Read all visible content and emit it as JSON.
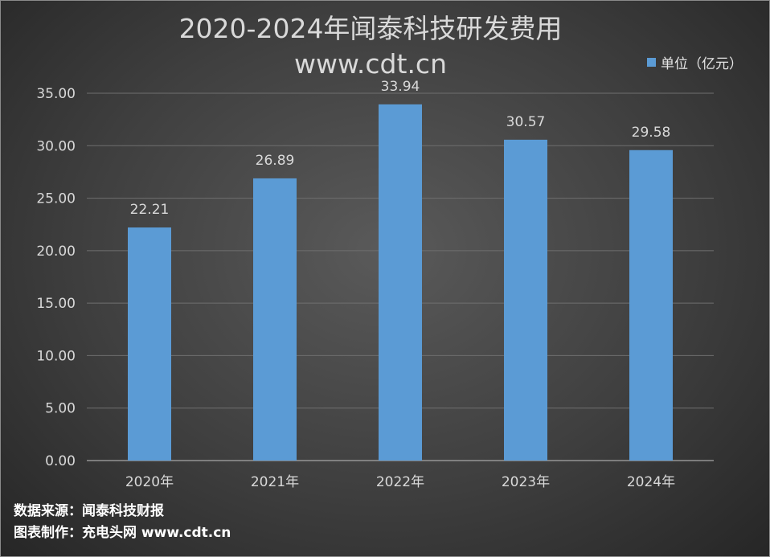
{
  "chart_data": {
    "type": "bar",
    "title": "2020-2024年闻泰科技研发费用",
    "subtitle": "www.cdt.cn",
    "categories": [
      "2020年",
      "2021年",
      "2022年",
      "2023年",
      "2024年"
    ],
    "series": [
      {
        "name": "单位（亿元）",
        "values": [
          22.21,
          26.89,
          33.94,
          30.57,
          29.58
        ]
      }
    ],
    "data_labels": [
      "22.21",
      "26.89",
      "33.94",
      "30.57",
      "29.58"
    ],
    "y_ticks": [
      "0.00",
      "5.00",
      "10.00",
      "15.00",
      "20.00",
      "25.00",
      "30.00",
      "35.00"
    ],
    "ylim": [
      0,
      35
    ],
    "grid": true,
    "legend_position": "top-right",
    "bar_color": "#5b9bd5",
    "xlabel": "",
    "ylabel": ""
  },
  "footer": {
    "source": "数据来源：闻泰科技财报",
    "credit": "图表制作：充电头网 www.cdt.cn"
  }
}
